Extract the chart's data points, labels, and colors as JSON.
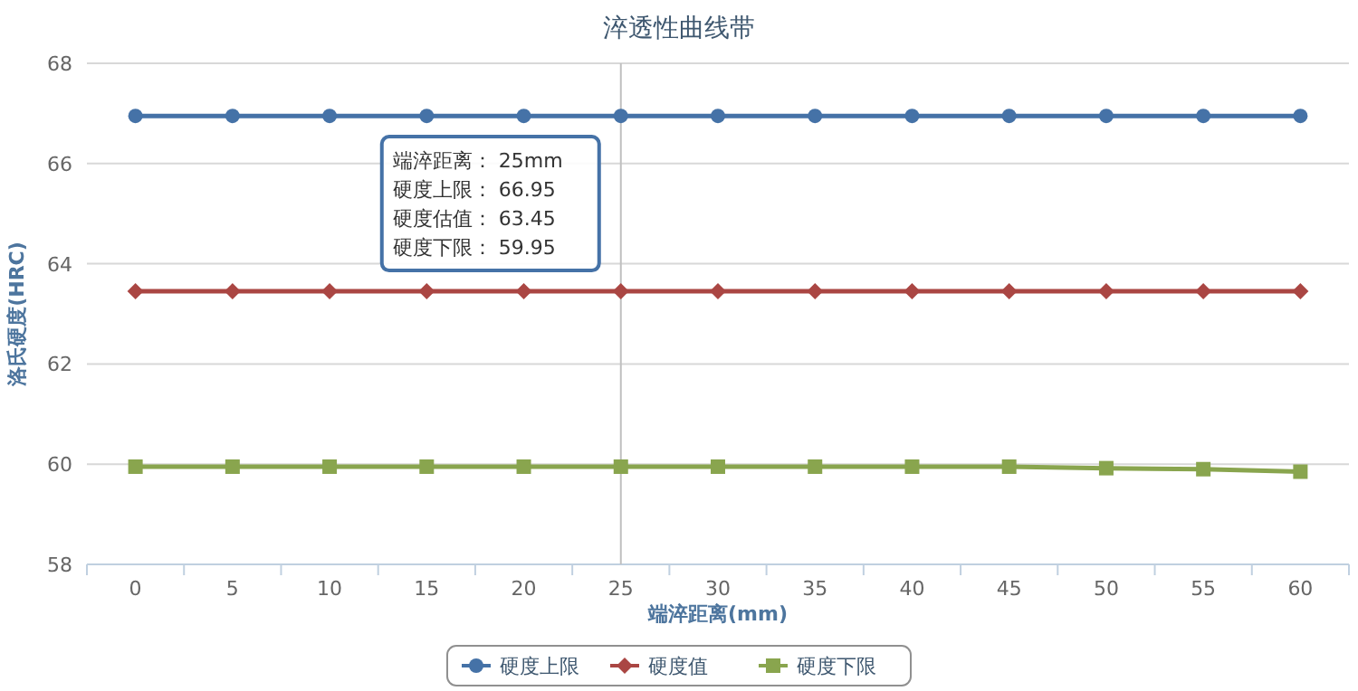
{
  "chart_data": {
    "type": "line",
    "title": "淬透性曲线带",
    "xlabel": "端淬距离(mm)",
    "ylabel": "洛氏硬度(HRC)",
    "categories": [
      "0",
      "5",
      "10",
      "15",
      "20",
      "25",
      "30",
      "35",
      "40",
      "45",
      "50",
      "55",
      "60"
    ],
    "series": [
      {
        "name": "硬度上限",
        "color": "#4572a7",
        "marker": "circle",
        "values": [
          66.95,
          66.95,
          66.95,
          66.95,
          66.95,
          66.95,
          66.95,
          66.95,
          66.95,
          66.95,
          66.95,
          66.95,
          66.95
        ]
      },
      {
        "name": "硬度值",
        "color": "#aa4643",
        "marker": "diamond",
        "values": [
          63.45,
          63.45,
          63.45,
          63.45,
          63.45,
          63.45,
          63.45,
          63.45,
          63.45,
          63.45,
          63.45,
          63.45,
          63.45
        ]
      },
      {
        "name": "硬度下限",
        "color": "#89a54e",
        "marker": "square",
        "values": [
          59.95,
          59.95,
          59.95,
          59.95,
          59.95,
          59.95,
          59.95,
          59.95,
          59.95,
          59.95,
          59.92,
          59.9,
          59.85
        ]
      }
    ],
    "ylim": [
      58,
      68
    ],
    "yticks": [
      58,
      60,
      62,
      64,
      66,
      68
    ],
    "grid": "y",
    "legend": "bottom",
    "ref_lines": [
      {
        "axis": "x",
        "value": "25",
        "color": "#c0c0c0"
      }
    ],
    "annotations": [
      "端淬距离： 25mm\n硬度上限： 66.95\n硬度估值： 63.45\n硬度下限： 59.95"
    ]
  }
}
